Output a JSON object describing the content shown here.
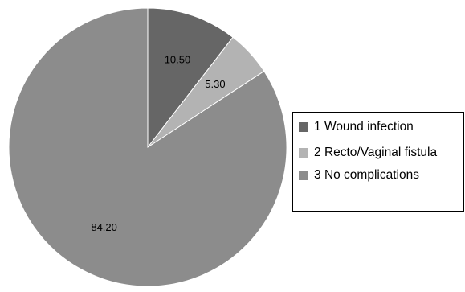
{
  "chart_data": {
    "type": "pie",
    "title": "",
    "start_angle_deg": 0,
    "direction": "clockwise",
    "slices": [
      {
        "index": "1",
        "label": "Wound infection",
        "value": 10.5,
        "value_label": "10.50",
        "color": "#666666"
      },
      {
        "index": "2",
        "label": "Recto/Vaginal fistula",
        "value": 5.3,
        "value_label": "5.30",
        "color": "#b3b3b3"
      },
      {
        "index": "3",
        "label": "No complications",
        "value": 84.2,
        "value_label": "84.20",
        "color": "#8c8c8c"
      }
    ],
    "legend": {
      "position": "right",
      "items": [
        {
          "index": "1",
          "label": "Wound infection",
          "color": "#666666"
        },
        {
          "index": "2",
          "label": "Recto/Vaginal fistula",
          "color": "#b3b3b3"
        },
        {
          "index": "3",
          "label": "No complications",
          "color": "#8c8c8c"
        }
      ]
    }
  }
}
